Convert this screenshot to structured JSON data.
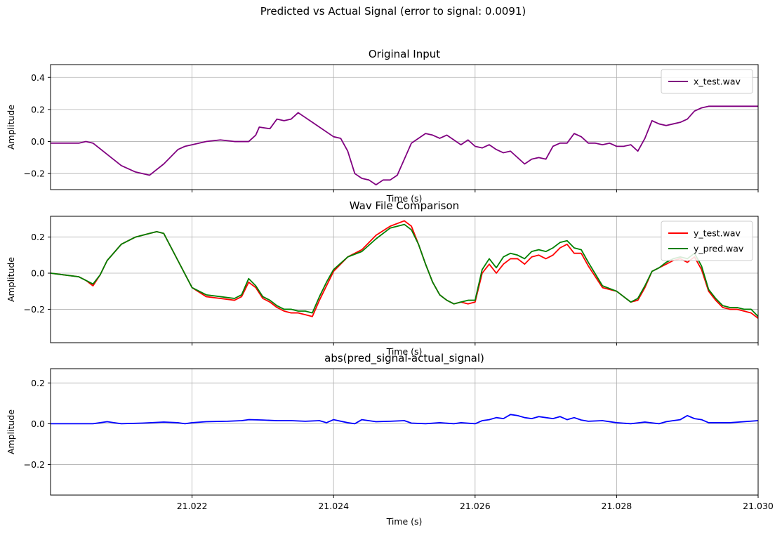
{
  "suptitle": "Predicted vs Actual Signal (error to signal: 0.0091)",
  "chart_data": [
    {
      "type": "line",
      "title": "Original Input",
      "xlabel": "Time (s)",
      "ylabel": "Amplitude",
      "xlim": [
        21.02,
        21.03
      ],
      "ylim": [
        -0.3,
        0.48
      ],
      "yticks": [
        -0.2,
        0.0,
        0.2,
        0.4
      ],
      "ytick_labels": [
        "−0.2",
        "0.0",
        "0.2",
        "0.4"
      ],
      "xticks": [
        21.022,
        21.024,
        21.026,
        21.028,
        21.03
      ],
      "xtick_labels": [],
      "grid": true,
      "legend": "top-right",
      "series": [
        {
          "name": "x_test.wav",
          "color": "#800080",
          "x": [
            21.02,
            21.0204,
            21.0205,
            21.0206,
            21.0208,
            21.021,
            21.0212,
            21.0214,
            21.0216,
            21.0218,
            21.0219,
            21.022,
            21.0222,
            21.0224,
            21.0226,
            21.0228,
            21.0229,
            21.02295,
            21.0231,
            21.0232,
            21.0233,
            21.0234,
            21.0235,
            21.0236,
            21.0237,
            21.0238,
            21.024,
            21.0241,
            21.0242,
            21.0243,
            21.0244,
            21.0245,
            21.0246,
            21.0247,
            21.0248,
            21.0249,
            21.0251,
            21.0252,
            21.0253,
            21.0254,
            21.0255,
            21.0256,
            21.0257,
            21.0258,
            21.0259,
            21.026,
            21.0261,
            21.0262,
            21.0263,
            21.0264,
            21.0265,
            21.0266,
            21.0267,
            21.0268,
            21.0269,
            21.027,
            21.0271,
            21.0272,
            21.0273,
            21.0274,
            21.0275,
            21.0276,
            21.0277,
            21.0278,
            21.0279,
            21.028,
            21.0281,
            21.0282,
            21.0283,
            21.0284,
            21.0285,
            21.0286,
            21.0287,
            21.0288,
            21.0289,
            21.029,
            21.0291,
            21.0292,
            21.0293,
            21.0294,
            21.0295,
            21.0296,
            21.0297,
            21.0298,
            21.0299,
            21.03
          ],
          "y": [
            -0.01,
            -0.01,
            0.0,
            -0.01,
            -0.08,
            -0.15,
            -0.19,
            -0.21,
            -0.14,
            -0.05,
            -0.03,
            -0.02,
            0.0,
            0.01,
            0.0,
            0.0,
            0.04,
            0.09,
            0.08,
            0.14,
            0.13,
            0.14,
            0.18,
            0.15,
            0.12,
            0.09,
            0.03,
            0.02,
            -0.06,
            -0.2,
            -0.23,
            -0.24,
            -0.27,
            -0.24,
            -0.24,
            -0.21,
            -0.01,
            0.02,
            0.05,
            0.04,
            0.02,
            0.04,
            0.01,
            -0.02,
            0.01,
            -0.03,
            -0.04,
            -0.02,
            -0.05,
            -0.07,
            -0.06,
            -0.1,
            -0.14,
            -0.11,
            -0.1,
            -0.11,
            -0.03,
            -0.01,
            -0.01,
            0.05,
            0.03,
            -0.01,
            -0.01,
            -0.02,
            -0.01,
            -0.03,
            -0.03,
            -0.02,
            -0.06,
            0.02,
            0.13,
            0.11,
            0.1,
            0.11,
            0.12,
            0.14,
            0.19,
            0.21,
            0.22,
            0.22,
            0.22,
            0.22,
            0.22,
            0.22,
            0.22,
            0.22
          ]
        }
      ]
    },
    {
      "type": "line",
      "title": "Wav File Comparison",
      "xlabel": "Time (s)",
      "ylabel": "Amplitude",
      "xlim": [
        21.02,
        21.03
      ],
      "ylim": [
        -0.385,
        0.315
      ],
      "yticks": [
        -0.2,
        0.0,
        0.2
      ],
      "ytick_labels": [
        "−0.2",
        "0.0",
        "0.2"
      ],
      "xticks": [
        21.022,
        21.024,
        21.026,
        21.028,
        21.03
      ],
      "xtick_labels": [],
      "grid": true,
      "legend": "top-right",
      "series": [
        {
          "name": "y_test.wav",
          "color": "#ff0000",
          "x": [
            21.02,
            21.0202,
            21.0204,
            21.0205,
            21.0206,
            21.0207,
            21.0208,
            21.021,
            21.0212,
            21.0214,
            21.0215,
            21.0216,
            21.0218,
            21.022,
            21.0222,
            21.0224,
            21.0226,
            21.0227,
            21.0228,
            21.0229,
            21.023,
            21.0231,
            21.0232,
            21.0233,
            21.0234,
            21.0235,
            21.0236,
            21.0237,
            21.0238,
            21.0239,
            21.024,
            21.0242,
            21.0244,
            21.0246,
            21.0248,
            21.025,
            21.0251,
            21.0252,
            21.0253,
            21.0254,
            21.0255,
            21.0256,
            21.0257,
            21.0258,
            21.0259,
            21.026,
            21.0261,
            21.0262,
            21.0263,
            21.0264,
            21.0265,
            21.0266,
            21.0267,
            21.0268,
            21.0269,
            21.027,
            21.0271,
            21.0272,
            21.0273,
            21.0274,
            21.0275,
            21.0276,
            21.0278,
            21.028,
            21.0281,
            21.0282,
            21.0283,
            21.0284,
            21.0285,
            21.0286,
            21.0287,
            21.0288,
            21.0289,
            21.029,
            21.0291,
            21.0292,
            21.0293,
            21.0294,
            21.0295,
            21.0296,
            21.0297,
            21.0298,
            21.0299,
            21.03
          ],
          "y": [
            0.0,
            -0.01,
            -0.02,
            -0.04,
            -0.07,
            -0.01,
            0.07,
            0.16,
            0.2,
            0.22,
            0.23,
            0.22,
            0.07,
            -0.08,
            -0.13,
            -0.14,
            -0.15,
            -0.13,
            -0.05,
            -0.08,
            -0.14,
            -0.16,
            -0.19,
            -0.21,
            -0.22,
            -0.22,
            -0.23,
            -0.24,
            -0.15,
            -0.07,
            0.01,
            0.09,
            0.13,
            0.21,
            0.26,
            0.29,
            0.26,
            0.16,
            0.05,
            -0.05,
            -0.12,
            -0.15,
            -0.17,
            -0.16,
            -0.17,
            -0.16,
            0.0,
            0.05,
            0.0,
            0.05,
            0.08,
            0.08,
            0.05,
            0.09,
            0.1,
            0.08,
            0.1,
            0.14,
            0.16,
            0.11,
            0.11,
            0.04,
            -0.08,
            -0.1,
            -0.13,
            -0.16,
            -0.15,
            -0.08,
            0.01,
            0.03,
            0.05,
            0.07,
            0.08,
            0.06,
            0.09,
            0.02,
            -0.1,
            -0.15,
            -0.19,
            -0.2,
            -0.2,
            -0.21,
            -0.22,
            -0.25
          ]
        },
        {
          "name": "y_pred.wav",
          "color": "#008000",
          "x": [
            21.02,
            21.0202,
            21.0204,
            21.0205,
            21.0206,
            21.0207,
            21.0208,
            21.021,
            21.0212,
            21.0214,
            21.0215,
            21.0216,
            21.0218,
            21.022,
            21.0222,
            21.0224,
            21.0226,
            21.0227,
            21.0228,
            21.0229,
            21.023,
            21.0231,
            21.0232,
            21.0233,
            21.0234,
            21.0235,
            21.0236,
            21.0237,
            21.0238,
            21.0239,
            21.024,
            21.0242,
            21.0244,
            21.0246,
            21.0248,
            21.025,
            21.0251,
            21.0252,
            21.0253,
            21.0254,
            21.0255,
            21.0256,
            21.0257,
            21.0258,
            21.0259,
            21.026,
            21.0261,
            21.0262,
            21.0263,
            21.0264,
            21.0265,
            21.0266,
            21.0267,
            21.0268,
            21.0269,
            21.027,
            21.0271,
            21.0272,
            21.0273,
            21.0274,
            21.0275,
            21.0276,
            21.0278,
            21.028,
            21.0281,
            21.0282,
            21.0283,
            21.0284,
            21.0285,
            21.0286,
            21.0287,
            21.0288,
            21.0289,
            21.029,
            21.0291,
            21.0292,
            21.0293,
            21.0294,
            21.0295,
            21.0296,
            21.0297,
            21.0298,
            21.0299,
            21.03
          ],
          "y": [
            0.0,
            -0.01,
            -0.02,
            -0.04,
            -0.06,
            -0.01,
            0.07,
            0.16,
            0.2,
            0.22,
            0.23,
            0.22,
            0.07,
            -0.08,
            -0.12,
            -0.13,
            -0.14,
            -0.12,
            -0.03,
            -0.07,
            -0.13,
            -0.15,
            -0.18,
            -0.2,
            -0.2,
            -0.21,
            -0.21,
            -0.22,
            -0.13,
            -0.05,
            0.02,
            0.09,
            0.12,
            0.19,
            0.25,
            0.27,
            0.24,
            0.16,
            0.05,
            -0.05,
            -0.12,
            -0.15,
            -0.17,
            -0.16,
            -0.15,
            -0.15,
            0.02,
            0.08,
            0.03,
            0.09,
            0.11,
            0.1,
            0.08,
            0.12,
            0.13,
            0.12,
            0.14,
            0.17,
            0.18,
            0.14,
            0.13,
            0.06,
            -0.07,
            -0.1,
            -0.13,
            -0.16,
            -0.14,
            -0.07,
            0.01,
            0.03,
            0.06,
            0.08,
            0.09,
            0.08,
            0.11,
            0.04,
            -0.09,
            -0.14,
            -0.18,
            -0.19,
            -0.19,
            -0.2,
            -0.2,
            -0.24
          ]
        }
      ]
    },
    {
      "type": "line",
      "title": "abs(pred_signal-actual_signal)",
      "xlabel": "Time (s)",
      "ylabel": "Amplitude",
      "xlim": [
        21.02,
        21.03
      ],
      "ylim": [
        -0.35,
        0.27
      ],
      "yticks": [
        -0.2,
        0.0,
        0.2
      ],
      "ytick_labels": [
        "−0.2",
        "0.0",
        "0.2"
      ],
      "xticks": [
        21.022,
        21.024,
        21.026,
        21.028,
        21.03
      ],
      "xtick_labels": [
        "21.022",
        "21.024",
        "21.026",
        "21.028",
        "21.030"
      ],
      "grid": true,
      "legend": "none",
      "series": [
        {
          "color": "#0000ff",
          "x": [
            21.02,
            21.0203,
            21.0205,
            21.0206,
            21.0207,
            21.0208,
            21.021,
            21.0213,
            21.0216,
            21.0218,
            21.0219,
            21.022,
            21.0222,
            21.0225,
            21.0227,
            21.0228,
            21.023,
            21.0232,
            21.0234,
            21.0236,
            21.0238,
            21.0239,
            21.024,
            21.0242,
            21.0243,
            21.0244,
            21.0246,
            21.0248,
            21.025,
            21.0251,
            21.0253,
            21.0255,
            21.0257,
            21.0258,
            21.026,
            21.0261,
            21.0262,
            21.0263,
            21.0264,
            21.0265,
            21.0266,
            21.0267,
            21.0268,
            21.0269,
            21.027,
            21.0271,
            21.0272,
            21.0273,
            21.0274,
            21.0275,
            21.0276,
            21.0278,
            21.028,
            21.0282,
            21.0284,
            21.0286,
            21.0287,
            21.0288,
            21.0289,
            21.029,
            21.0291,
            21.0292,
            21.0293,
            21.0294,
            21.0296,
            21.0298,
            21.03
          ],
          "y": [
            0.0,
            0.0,
            0.0,
            0.0,
            0.005,
            0.01,
            0.0,
            0.003,
            0.008,
            0.005,
            0.0,
            0.005,
            0.01,
            0.012,
            0.015,
            0.02,
            0.018,
            0.015,
            0.015,
            0.012,
            0.015,
            0.005,
            0.02,
            0.005,
            0.0,
            0.02,
            0.01,
            0.012,
            0.015,
            0.003,
            0.0,
            0.005,
            0.0,
            0.005,
            0.0,
            0.015,
            0.02,
            0.03,
            0.025,
            0.045,
            0.04,
            0.03,
            0.025,
            0.035,
            0.03,
            0.025,
            0.035,
            0.02,
            0.03,
            0.018,
            0.012,
            0.015,
            0.005,
            0.0,
            0.008,
            0.0,
            0.01,
            0.015,
            0.02,
            0.04,
            0.025,
            0.02,
            0.005,
            0.005,
            0.005,
            0.01,
            0.015
          ]
        }
      ]
    }
  ]
}
